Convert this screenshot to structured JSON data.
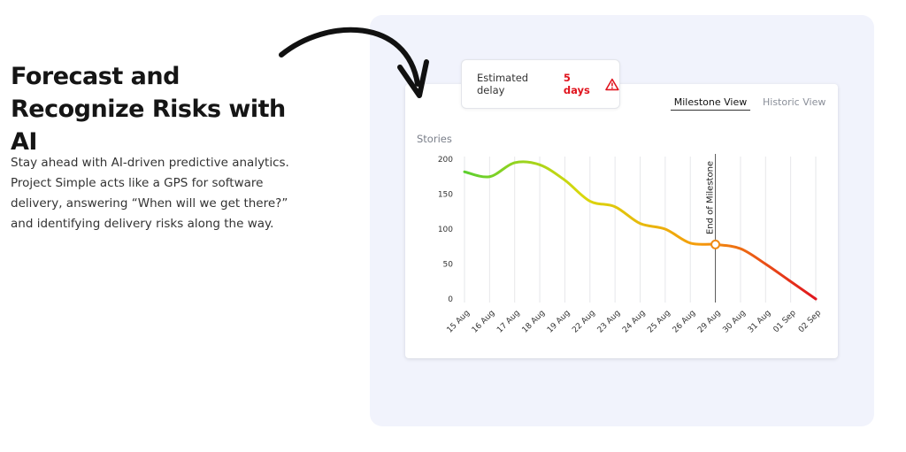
{
  "hero": {
    "title": "Forecast and Recognize Risks with AI",
    "text": "Stay ahead with AI-driven predictive analytics. Project Simple acts like a GPS for software delivery, answering “When will we get there?” and identifying delivery risks along the way."
  },
  "delay_card": {
    "label": "Estimated delay",
    "value": "5 days"
  },
  "tabs": [
    "Milestone View",
    "Historic View"
  ],
  "chart_data": {
    "type": "line",
    "ylabel": "Stories",
    "categories": [
      "15 Aug",
      "16 Aug",
      "17 Aug",
      "18 Aug",
      "19 Aug",
      "22 Aug",
      "23 Aug",
      "24 Aug",
      "25 Aug",
      "26 Aug",
      "29 Aug",
      "30 Aug",
      "31 Aug",
      "01 Sep",
      "02 Sep"
    ],
    "values": [
      182,
      175,
      195,
      192,
      170,
      140,
      132,
      108,
      100,
      80,
      78,
      72,
      50,
      25,
      0
    ],
    "ylim": [
      0,
      200
    ],
    "yticks": [
      0,
      50,
      100,
      150,
      200
    ],
    "color_stops": [
      "#5ccf2f",
      "#d9d80c",
      "#f59c0c",
      "#e0141e"
    ],
    "annotation": {
      "label": "End of Milestone",
      "category": "29 Aug"
    }
  }
}
